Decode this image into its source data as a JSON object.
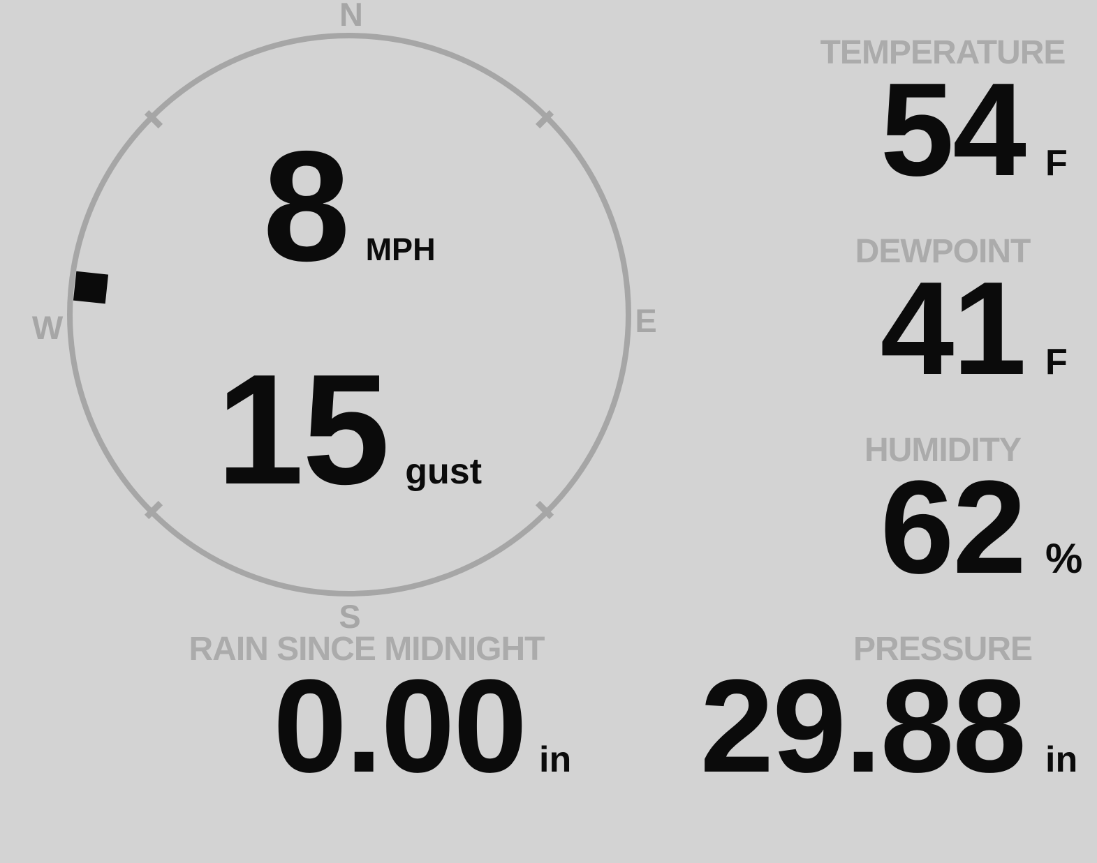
{
  "colors": {
    "bg": "#d3d3d3",
    "fg": "#0b0b0b",
    "muted": "#ababab",
    "ring": "#a6a6a6"
  },
  "wind": {
    "speed": "8",
    "speed_unit": "MPH",
    "gust": "15",
    "gust_unit": "gust",
    "direction_deg": 276,
    "compass": {
      "north": "N",
      "east": "E",
      "south": "S",
      "west": "W"
    }
  },
  "metrics": [
    {
      "id": "temperature",
      "label": "TEMPERATURE",
      "value": "54",
      "unit": "F"
    },
    {
      "id": "dewpoint",
      "label": "DEWPOINT",
      "value": "41",
      "unit": "F"
    },
    {
      "id": "humidity",
      "label": "HUMIDITY",
      "value": "62",
      "unit": "%"
    },
    {
      "id": "pressure",
      "label": "PRESSURE",
      "value": "29.88",
      "unit": "in"
    },
    {
      "id": "rain",
      "label": "RAIN SINCE MIDNIGHT",
      "value": "0.00",
      "unit": "in"
    }
  ]
}
